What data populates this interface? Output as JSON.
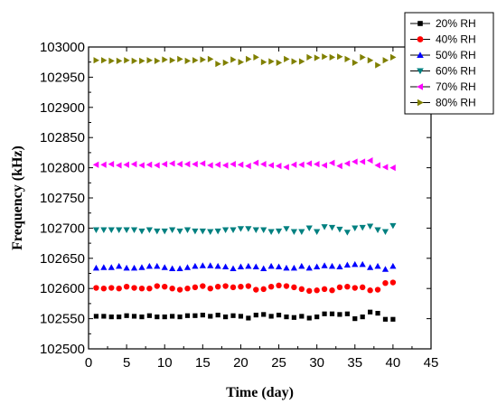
{
  "chart_data": {
    "type": "scatter",
    "title": "",
    "xlabel": "Time (day)",
    "ylabel": "Frequency (kHz)",
    "xlim": [
      0,
      45
    ],
    "ylim": [
      102500,
      103000
    ],
    "xticks": [
      0,
      5,
      10,
      15,
      20,
      25,
      30,
      35,
      40,
      45
    ],
    "yticks": [
      102500,
      102550,
      102600,
      102650,
      102700,
      102750,
      102800,
      102850,
      102900,
      102950,
      103000
    ],
    "x": [
      1,
      2,
      3,
      4,
      5,
      6,
      7,
      8,
      9,
      10,
      11,
      12,
      13,
      14,
      15,
      16,
      17,
      18,
      19,
      20,
      21,
      22,
      23,
      24,
      25,
      26,
      27,
      28,
      29,
      30,
      31,
      32,
      33,
      34,
      35,
      36,
      37,
      38,
      39,
      40
    ],
    "grid": false,
    "legend_position": "top-right",
    "series": [
      {
        "name": "20% RH",
        "marker": "square",
        "color": "#000000",
        "values": [
          102554,
          102554,
          102553,
          102553,
          102555,
          102554,
          102553,
          102555,
          102553,
          102553,
          102554,
          102553,
          102555,
          102555,
          102556,
          102554,
          102556,
          102553,
          102555,
          102554,
          102551,
          102556,
          102557,
          102554,
          102556,
          102553,
          102552,
          102554,
          102551,
          102553,
          102558,
          102558,
          102557,
          102558,
          102550,
          102553,
          102561,
          102559,
          102549,
          102549
        ]
      },
      {
        "name": "40% RH",
        "marker": "circle",
        "color": "#ff0000",
        "values": [
          102601,
          102600,
          102601,
          102600,
          102603,
          102601,
          102600,
          102600,
          102604,
          102603,
          102600,
          102598,
          102600,
          102602,
          102604,
          102600,
          102603,
          102604,
          102602,
          102603,
          102604,
          102598,
          102599,
          102603,
          102605,
          102604,
          102602,
          102599,
          102596,
          102597,
          102599,
          102597,
          102602,
          102603,
          102601,
          102602,
          102597,
          102598,
          102609,
          102610
        ]
      },
      {
        "name": "50% RH",
        "marker": "triangle-up",
        "color": "#0000ff",
        "values": [
          102634,
          102635,
          102635,
          102637,
          102634,
          102634,
          102635,
          102637,
          102637,
          102635,
          102633,
          102633,
          102635,
          102637,
          102638,
          102638,
          102637,
          102636,
          102633,
          102636,
          102637,
          102636,
          102633,
          102637,
          102636,
          102634,
          102634,
          102637,
          102634,
          102636,
          102638,
          102637,
          102636,
          102639,
          102640,
          102640,
          102635,
          102637,
          102632,
          102637
        ]
      },
      {
        "name": "60% RH",
        "marker": "triangle-down",
        "color": "#008080",
        "values": [
          102697,
          102697,
          102697,
          102697,
          102697,
          102697,
          102695,
          102697,
          102695,
          102695,
          102697,
          102695,
          102697,
          102695,
          102695,
          102694,
          102695,
          102697,
          102697,
          102699,
          102699,
          102697,
          102697,
          102694,
          102695,
          102699,
          102694,
          102694,
          102700,
          102694,
          102702,
          102701,
          102698,
          102693,
          102700,
          102701,
          102703,
          102697,
          102694,
          102704
        ]
      },
      {
        "name": "70% RH",
        "marker": "triangle-left",
        "color": "#ff00ff",
        "values": [
          102805,
          102805,
          102806,
          102804,
          102805,
          102806,
          102804,
          102805,
          102804,
          102806,
          102807,
          102806,
          102806,
          102806,
          102807,
          102804,
          102805,
          102804,
          102806,
          102805,
          102803,
          102808,
          102806,
          102804,
          102803,
          102801,
          102805,
          102805,
          102807,
          102806,
          102804,
          102808,
          102803,
          102807,
          102810,
          102810,
          102812,
          102804,
          102801,
          102800
        ]
      },
      {
        "name": "80% RH",
        "marker": "triangle-right",
        "color": "#808000",
        "values": [
          102978,
          102978,
          102977,
          102977,
          102978,
          102977,
          102977,
          102978,
          102977,
          102979,
          102978,
          102980,
          102977,
          102978,
          102979,
          102980,
          102972,
          102974,
          102979,
          102975,
          102980,
          102983,
          102975,
          102976,
          102974,
          102980,
          102976,
          102976,
          102983,
          102982,
          102984,
          102983,
          102984,
          102980,
          102974,
          102983,
          102978,
          102970,
          102978,
          102983
        ]
      }
    ]
  }
}
